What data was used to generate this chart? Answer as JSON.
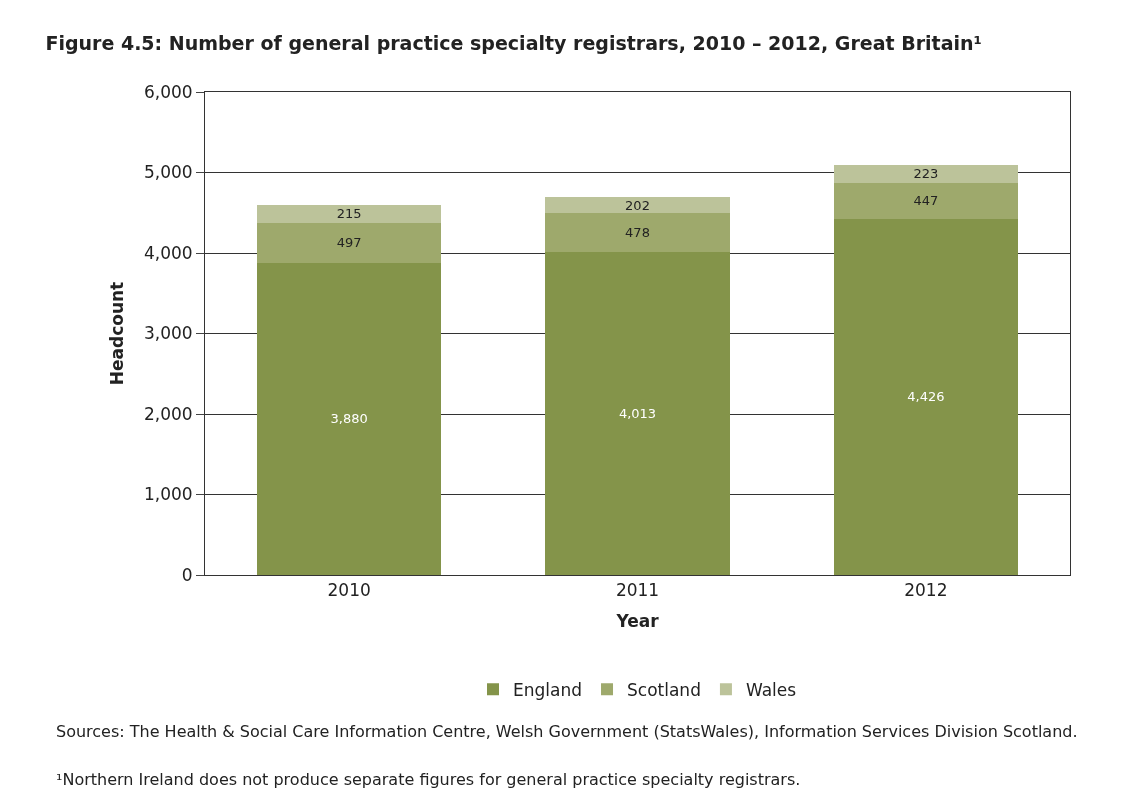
{
  "chart_data": {
    "type": "bar",
    "stacked": true,
    "title": "Figure 4.5: Number of general practice specialty registrars, 2010 – 2012, Great Britain¹",
    "xlabel": "Year",
    "ylabel": "Headcount",
    "categories": [
      "2010",
      "2011",
      "2012"
    ],
    "series": [
      {
        "name": "England",
        "color": "#84944a",
        "values": [
          3880,
          4013,
          4426
        ],
        "value_labels": [
          "3,880",
          "4,013",
          "4,426"
        ]
      },
      {
        "name": "Scotland",
        "color": "#9ea96c",
        "values": [
          497,
          478,
          447
        ],
        "value_labels": [
          "497",
          "478",
          "447"
        ]
      },
      {
        "name": "Wales",
        "color": "#bcc39a",
        "values": [
          215,
          202,
          223
        ],
        "value_labels": [
          "215",
          "202",
          "223"
        ]
      }
    ],
    "ylim": [
      0,
      6000
    ],
    "yticks": [
      {
        "value": 0,
        "label": "0"
      },
      {
        "value": 1000,
        "label": "1,000"
      },
      {
        "value": 2000,
        "label": "2,000"
      },
      {
        "value": 3000,
        "label": "3,000"
      },
      {
        "value": 4000,
        "label": "4,000"
      },
      {
        "value": 5000,
        "label": "5,000"
      },
      {
        "value": 6000,
        "label": "6,000"
      }
    ],
    "grid": "y",
    "legend": "bottom",
    "annotations": [
      "Sources: The Health & Social Care Information Centre, Welsh Government (StatsWales), Information Services Division Scotland.",
      "¹Northern Ireland does not produce separate figures for general practice specialty registrars."
    ]
  }
}
